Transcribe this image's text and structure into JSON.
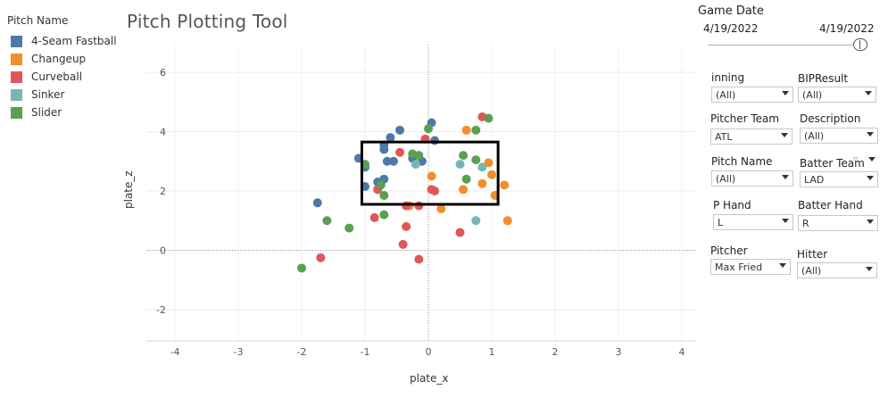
{
  "title": "Pitch Plotting Tool",
  "legend": {
    "title": "Pitch Name",
    "items": [
      {
        "label": "4-Seam Fastball",
        "color": "#4e79a7"
      },
      {
        "label": "Changeup",
        "color": "#f28e2b"
      },
      {
        "label": "Curveball",
        "color": "#e15759"
      },
      {
        "label": "Sinker",
        "color": "#76b7b2"
      },
      {
        "label": "Slider",
        "color": "#59a14f"
      }
    ]
  },
  "filters": {
    "game_date": {
      "label": "Game Date",
      "start": "4/19/2022",
      "end": "4/19/2022"
    },
    "inning": {
      "label": "inning",
      "value": "(All)"
    },
    "bip_result": {
      "label": "BIPResult",
      "value": "(All)"
    },
    "pitcher_team": {
      "label": "Pitcher Team",
      "value": "ATL"
    },
    "description": {
      "label": "Description",
      "value": "(All)"
    },
    "pitch_name": {
      "label": "Pitch Name",
      "value": "(All)"
    },
    "batter_team": {
      "label": "Batter Team",
      "value": "LAD"
    },
    "p_hand": {
      "label": "P Hand",
      "value": "L"
    },
    "batter_hand": {
      "label": "Batter Hand",
      "value": "R"
    },
    "pitcher": {
      "label": "Pitcher",
      "value": "Max Fried"
    },
    "hitter": {
      "label": "Hitter",
      "value": "(All)"
    }
  },
  "chart_data": {
    "type": "scatter",
    "xlabel": "plate_x",
    "ylabel": "plate_z",
    "xlim": [
      -4,
      4
    ],
    "ylim": [
      -3,
      7
    ],
    "x_ticks": [
      "-4",
      "-3",
      "-2",
      "-1",
      "0",
      "1",
      "2",
      "3",
      "4"
    ],
    "y_ticks": [
      "-2",
      "0",
      "2",
      "4",
      "6"
    ],
    "grid": true,
    "strike_zone": {
      "x": [
        -1.05,
        1.1
      ],
      "z": [
        1.55,
        3.65
      ]
    },
    "series": [
      {
        "name": "4-Seam Fastball",
        "color": "#4e79a7",
        "points": [
          [
            -1.1,
            3.1
          ],
          [
            -1.0,
            2.8
          ],
          [
            -1.0,
            2.15
          ],
          [
            -0.8,
            2.3
          ],
          [
            -0.7,
            3.4
          ],
          [
            -0.7,
            3.55
          ],
          [
            -0.65,
            3.0
          ],
          [
            -0.6,
            3.8
          ],
          [
            -0.55,
            3.0
          ],
          [
            -0.45,
            4.05
          ],
          [
            -0.25,
            3.1
          ],
          [
            -0.1,
            3.0
          ],
          [
            0.05,
            4.3
          ],
          [
            0.1,
            3.7
          ],
          [
            -0.7,
            2.4
          ],
          [
            -1.75,
            1.6
          ]
        ]
      },
      {
        "name": "Changeup",
        "color": "#f28e2b",
        "points": [
          [
            0.6,
            4.05
          ],
          [
            0.05,
            2.5
          ],
          [
            0.55,
            2.05
          ],
          [
            0.85,
            2.25
          ],
          [
            0.95,
            2.95
          ],
          [
            1.0,
            2.55
          ],
          [
            1.05,
            1.85
          ],
          [
            1.2,
            2.2
          ],
          [
            1.25,
            1.0
          ],
          [
            0.2,
            1.4
          ],
          [
            -0.3,
            1.5
          ]
        ]
      },
      {
        "name": "Curveball",
        "color": "#e15759",
        "points": [
          [
            -0.45,
            3.3
          ],
          [
            -0.05,
            3.75
          ],
          [
            -0.8,
            2.05
          ],
          [
            0.05,
            2.05
          ],
          [
            0.1,
            2.0
          ],
          [
            -0.15,
            1.5
          ],
          [
            -0.35,
            1.5
          ],
          [
            -0.85,
            1.1
          ],
          [
            -0.35,
            0.8
          ],
          [
            -0.4,
            0.2
          ],
          [
            -0.15,
            -0.3
          ],
          [
            -1.7,
            -0.25
          ],
          [
            0.5,
            0.6
          ],
          [
            0.85,
            4.5
          ]
        ]
      },
      {
        "name": "Sinker",
        "color": "#76b7b2",
        "points": [
          [
            -0.2,
            2.9
          ],
          [
            0.5,
            2.9
          ],
          [
            0.85,
            2.8
          ],
          [
            0.75,
            1.0
          ]
        ]
      },
      {
        "name": "Slider",
        "color": "#59a14f",
        "points": [
          [
            -0.25,
            3.25
          ],
          [
            -0.15,
            3.2
          ],
          [
            0.0,
            4.1
          ],
          [
            0.55,
            3.2
          ],
          [
            0.75,
            4.05
          ],
          [
            0.75,
            3.05
          ],
          [
            0.95,
            4.45
          ],
          [
            0.6,
            2.4
          ],
          [
            -1.0,
            2.9
          ],
          [
            -0.75,
            2.2
          ],
          [
            -0.7,
            1.85
          ],
          [
            -0.7,
            1.2
          ],
          [
            -1.25,
            0.75
          ],
          [
            -1.6,
            1.0
          ],
          [
            -2.0,
            -0.6
          ]
        ]
      }
    ]
  }
}
